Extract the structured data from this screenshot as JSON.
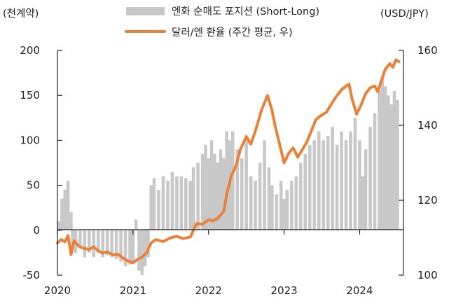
{
  "chart_data": {
    "type": "bar+line",
    "left_axis_unit": "(천계약)",
    "right_axis_unit": "(USD/JPY)",
    "left_ylim": [
      -50,
      200
    ],
    "left_ticks": [
      "200",
      "150",
      "100",
      "50",
      "0",
      "-50"
    ],
    "left_tick_values": [
      200,
      150,
      100,
      50,
      0,
      -50
    ],
    "right_ylim": [
      100,
      160
    ],
    "right_ticks": [
      "160",
      "140",
      "120",
      "100"
    ],
    "right_tick_values": [
      160,
      140,
      120,
      100
    ],
    "x_labels": [
      "2020",
      "2021",
      "2022",
      "2023",
      "2024"
    ],
    "x_label_values": [
      2020.0,
      2021.0,
      2022.0,
      2023.0,
      2024.0
    ],
    "xlim": [
      2020.0,
      2024.58
    ],
    "grid": false,
    "legend_placement": "top",
    "series": [
      {
        "name": "엔화 순매도 포지션 (Short-Long)",
        "type": "bar",
        "axis": "left",
        "color": "#c8c8c8",
        "points": [
          [
            2020.02,
            10
          ],
          [
            2020.06,
            35
          ],
          [
            2020.1,
            45
          ],
          [
            2020.12,
            25
          ],
          [
            2020.14,
            55
          ],
          [
            2020.18,
            20
          ],
          [
            2020.2,
            -20
          ],
          [
            2020.24,
            -25
          ],
          [
            2020.3,
            -20
          ],
          [
            2020.36,
            -30
          ],
          [
            2020.42,
            -25
          ],
          [
            2020.48,
            -30
          ],
          [
            2020.54,
            -25
          ],
          [
            2020.6,
            -30
          ],
          [
            2020.66,
            -28
          ],
          [
            2020.72,
            -30
          ],
          [
            2020.78,
            -32
          ],
          [
            2020.84,
            -35
          ],
          [
            2020.9,
            -40
          ],
          [
            2020.96,
            -38
          ],
          [
            2021.0,
            -35
          ],
          [
            2021.04,
            12
          ],
          [
            2021.08,
            -45
          ],
          [
            2021.12,
            -50
          ],
          [
            2021.16,
            -40
          ],
          [
            2021.2,
            -30
          ],
          [
            2021.24,
            50
          ],
          [
            2021.28,
            58
          ],
          [
            2021.34,
            45
          ],
          [
            2021.4,
            60
          ],
          [
            2021.46,
            55
          ],
          [
            2021.52,
            65
          ],
          [
            2021.58,
            60
          ],
          [
            2021.64,
            60
          ],
          [
            2021.7,
            58
          ],
          [
            2021.76,
            55
          ],
          [
            2021.8,
            70
          ],
          [
            2021.86,
            75
          ],
          [
            2021.92,
            85
          ],
          [
            2021.96,
            95
          ],
          [
            2022.0,
            80
          ],
          [
            2022.04,
            100
          ],
          [
            2022.08,
            85
          ],
          [
            2022.12,
            75
          ],
          [
            2022.16,
            90
          ],
          [
            2022.2,
            80
          ],
          [
            2022.24,
            110
          ],
          [
            2022.28,
            100
          ],
          [
            2022.32,
            110
          ],
          [
            2022.38,
            90
          ],
          [
            2022.44,
            80
          ],
          [
            2022.5,
            100
          ],
          [
            2022.56,
            60
          ],
          [
            2022.62,
            55
          ],
          [
            2022.68,
            75
          ],
          [
            2022.74,
            100
          ],
          [
            2022.8,
            70
          ],
          [
            2022.84,
            50
          ],
          [
            2022.9,
            40
          ],
          [
            2022.96,
            55
          ],
          [
            2023.0,
            35
          ],
          [
            2023.04,
            45
          ],
          [
            2023.1,
            55
          ],
          [
            2023.16,
            60
          ],
          [
            2023.22,
            75
          ],
          [
            2023.28,
            85
          ],
          [
            2023.34,
            95
          ],
          [
            2023.4,
            100
          ],
          [
            2023.46,
            110
          ],
          [
            2023.52,
            100
          ],
          [
            2023.58,
            105
          ],
          [
            2023.64,
            115
          ],
          [
            2023.7,
            95
          ],
          [
            2023.76,
            110
          ],
          [
            2023.82,
            100
          ],
          [
            2023.88,
            110
          ],
          [
            2023.94,
            125
          ],
          [
            2024.0,
            100
          ],
          [
            2024.04,
            60
          ],
          [
            2024.08,
            90
          ],
          [
            2024.14,
            115
          ],
          [
            2024.2,
            130
          ],
          [
            2024.26,
            155
          ],
          [
            2024.3,
            170
          ],
          [
            2024.34,
            160
          ],
          [
            2024.38,
            150
          ],
          [
            2024.42,
            140
          ],
          [
            2024.46,
            155
          ],
          [
            2024.5,
            145
          ]
        ]
      },
      {
        "name": "달러/엔 환율 (주간 평균, 우)",
        "type": "line",
        "axis": "right",
        "color": "#e8823a",
        "points": [
          [
            2020.0,
            108.6
          ],
          [
            2020.05,
            109.5
          ],
          [
            2020.1,
            108.9
          ],
          [
            2020.14,
            110.6
          ],
          [
            2020.18,
            105.5
          ],
          [
            2020.22,
            109.2
          ],
          [
            2020.28,
            107.8
          ],
          [
            2020.34,
            107.2
          ],
          [
            2020.42,
            106.9
          ],
          [
            2020.48,
            107.6
          ],
          [
            2020.54,
            106.5
          ],
          [
            2020.6,
            105.9
          ],
          [
            2020.66,
            106.2
          ],
          [
            2020.74,
            105.4
          ],
          [
            2020.8,
            105.6
          ],
          [
            2020.86,
            104.7
          ],
          [
            2020.92,
            103.9
          ],
          [
            2021.0,
            103.3
          ],
          [
            2021.06,
            104.2
          ],
          [
            2021.12,
            104.8
          ],
          [
            2021.18,
            106.0
          ],
          [
            2021.24,
            108.6
          ],
          [
            2021.3,
            109.5
          ],
          [
            2021.4,
            109.0
          ],
          [
            2021.5,
            110.0
          ],
          [
            2021.58,
            110.4
          ],
          [
            2021.66,
            109.8
          ],
          [
            2021.76,
            110.2
          ],
          [
            2021.84,
            113.8
          ],
          [
            2021.92,
            113.6
          ],
          [
            2022.0,
            114.8
          ],
          [
            2022.06,
            114.5
          ],
          [
            2022.12,
            115.2
          ],
          [
            2022.2,
            117.0
          ],
          [
            2022.24,
            121.5
          ],
          [
            2022.3,
            126.5
          ],
          [
            2022.36,
            129.0
          ],
          [
            2022.42,
            133.5
          ],
          [
            2022.5,
            137.0
          ],
          [
            2022.56,
            135.0
          ],
          [
            2022.62,
            138.5
          ],
          [
            2022.7,
            144.0
          ],
          [
            2022.78,
            148.0
          ],
          [
            2022.84,
            144.0
          ],
          [
            2022.88,
            140.0
          ],
          [
            2022.94,
            135.0
          ],
          [
            2023.0,
            130.0
          ],
          [
            2023.06,
            132.5
          ],
          [
            2023.12,
            134.0
          ],
          [
            2023.18,
            131.5
          ],
          [
            2023.24,
            133.5
          ],
          [
            2023.3,
            135.5
          ],
          [
            2023.36,
            138.5
          ],
          [
            2023.42,
            141.5
          ],
          [
            2023.48,
            142.5
          ],
          [
            2023.56,
            143.5
          ],
          [
            2023.62,
            145.5
          ],
          [
            2023.7,
            148.0
          ],
          [
            2023.76,
            149.5
          ],
          [
            2023.82,
            150.5
          ],
          [
            2023.86,
            151.0
          ],
          [
            2023.9,
            147.0
          ],
          [
            2023.96,
            143.0
          ],
          [
            2024.02,
            145.5
          ],
          [
            2024.08,
            148.5
          ],
          [
            2024.14,
            150.0
          ],
          [
            2024.2,
            150.5
          ],
          [
            2024.24,
            149.0
          ],
          [
            2024.28,
            151.5
          ],
          [
            2024.34,
            155.0
          ],
          [
            2024.4,
            156.5
          ],
          [
            2024.44,
            155.5
          ],
          [
            2024.48,
            157.5
          ],
          [
            2024.52,
            157.0
          ]
        ]
      }
    ]
  }
}
